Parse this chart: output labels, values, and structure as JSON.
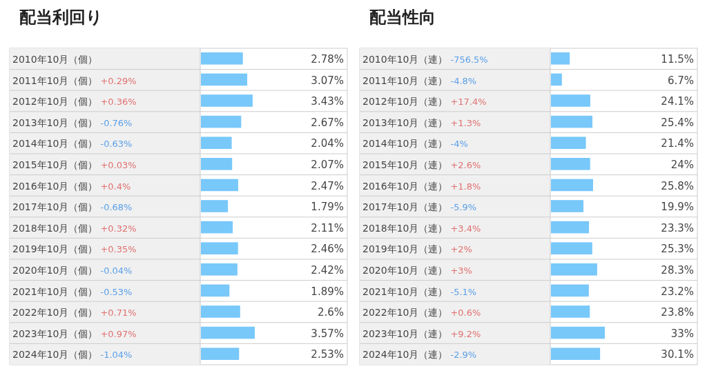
{
  "chart_data": [
    {
      "type": "bar",
      "orientation": "horizontal",
      "title": "配当利回り",
      "categories": [
        "2010年10月（個）",
        "2011年10月（個）",
        "2012年10月（個）",
        "2013年10月（個）",
        "2014年10月（個）",
        "2015年10月（個）",
        "2016年10月（個）",
        "2017年10月（個）",
        "2018年10月（個）",
        "2019年10月（個）",
        "2020年10月（個）",
        "2021年10月（個）",
        "2022年10月（個）",
        "2023年10月（個）",
        "2024年10月（個）"
      ],
      "values": [
        2.78,
        3.07,
        3.43,
        2.67,
        2.04,
        2.07,
        2.47,
        1.79,
        2.11,
        2.46,
        2.42,
        1.89,
        2.6,
        3.57,
        2.53
      ],
      "value_labels": [
        "2.78%",
        "3.07%",
        "3.43%",
        "2.67%",
        "2.04%",
        "2.07%",
        "2.47%",
        "1.79%",
        "2.11%",
        "2.46%",
        "2.42%",
        "1.89%",
        "2.6%",
        "3.57%",
        "2.53%"
      ],
      "color": "#78c8fa",
      "annotations": [
        "+0.29%",
        "+0.36%",
        "-0.76%",
        "-0.63%",
        "+0.03%",
        "+0.4%",
        "-0.68%",
        "+0.32%",
        "+0.35%",
        "-0.04%",
        "-0.53%",
        "+0.71%",
        "+0.97%",
        "-1.04%"
      ]
    },
    {
      "type": "bar",
      "orientation": "horizontal",
      "title": "配当性向",
      "categories": [
        "2010年10月（連）",
        "2011年10月（連）",
        "2012年10月（連）",
        "2013年10月（連）",
        "2014年10月（連）",
        "2015年10月（連）",
        "2016年10月（連）",
        "2017年10月（連）",
        "2018年10月（連）",
        "2019年10月（連）",
        "2020年10月（連）",
        "2021年10月（連）",
        "2022年10月（連）",
        "2023年10月（連）",
        "2024年10月（連）"
      ],
      "values": [
        11.5,
        6.7,
        24.1,
        25.4,
        21.4,
        24,
        25.8,
        19.9,
        23.3,
        25.3,
        28.3,
        23.2,
        23.8,
        33,
        30.1
      ],
      "value_labels": [
        "11.5%",
        "6.7%",
        "24.1%",
        "25.4%",
        "21.4%",
        "24%",
        "25.8%",
        "19.9%",
        "23.3%",
        "25.3%",
        "28.3%",
        "23.2%",
        "23.8%",
        "33%",
        "30.1%"
      ],
      "color": "#78c8fa",
      "annotations": [
        "-756.5%",
        "-4.8%",
        "+17.4%",
        "+1.3%",
        "-4%",
        "+2.6%",
        "+1.8%",
        "-5.9%",
        "+3.4%",
        "+2%",
        "+3%",
        "-5.1%",
        "+0.6%",
        "+9.2%",
        "-2.9%"
      ]
    }
  ]
}
